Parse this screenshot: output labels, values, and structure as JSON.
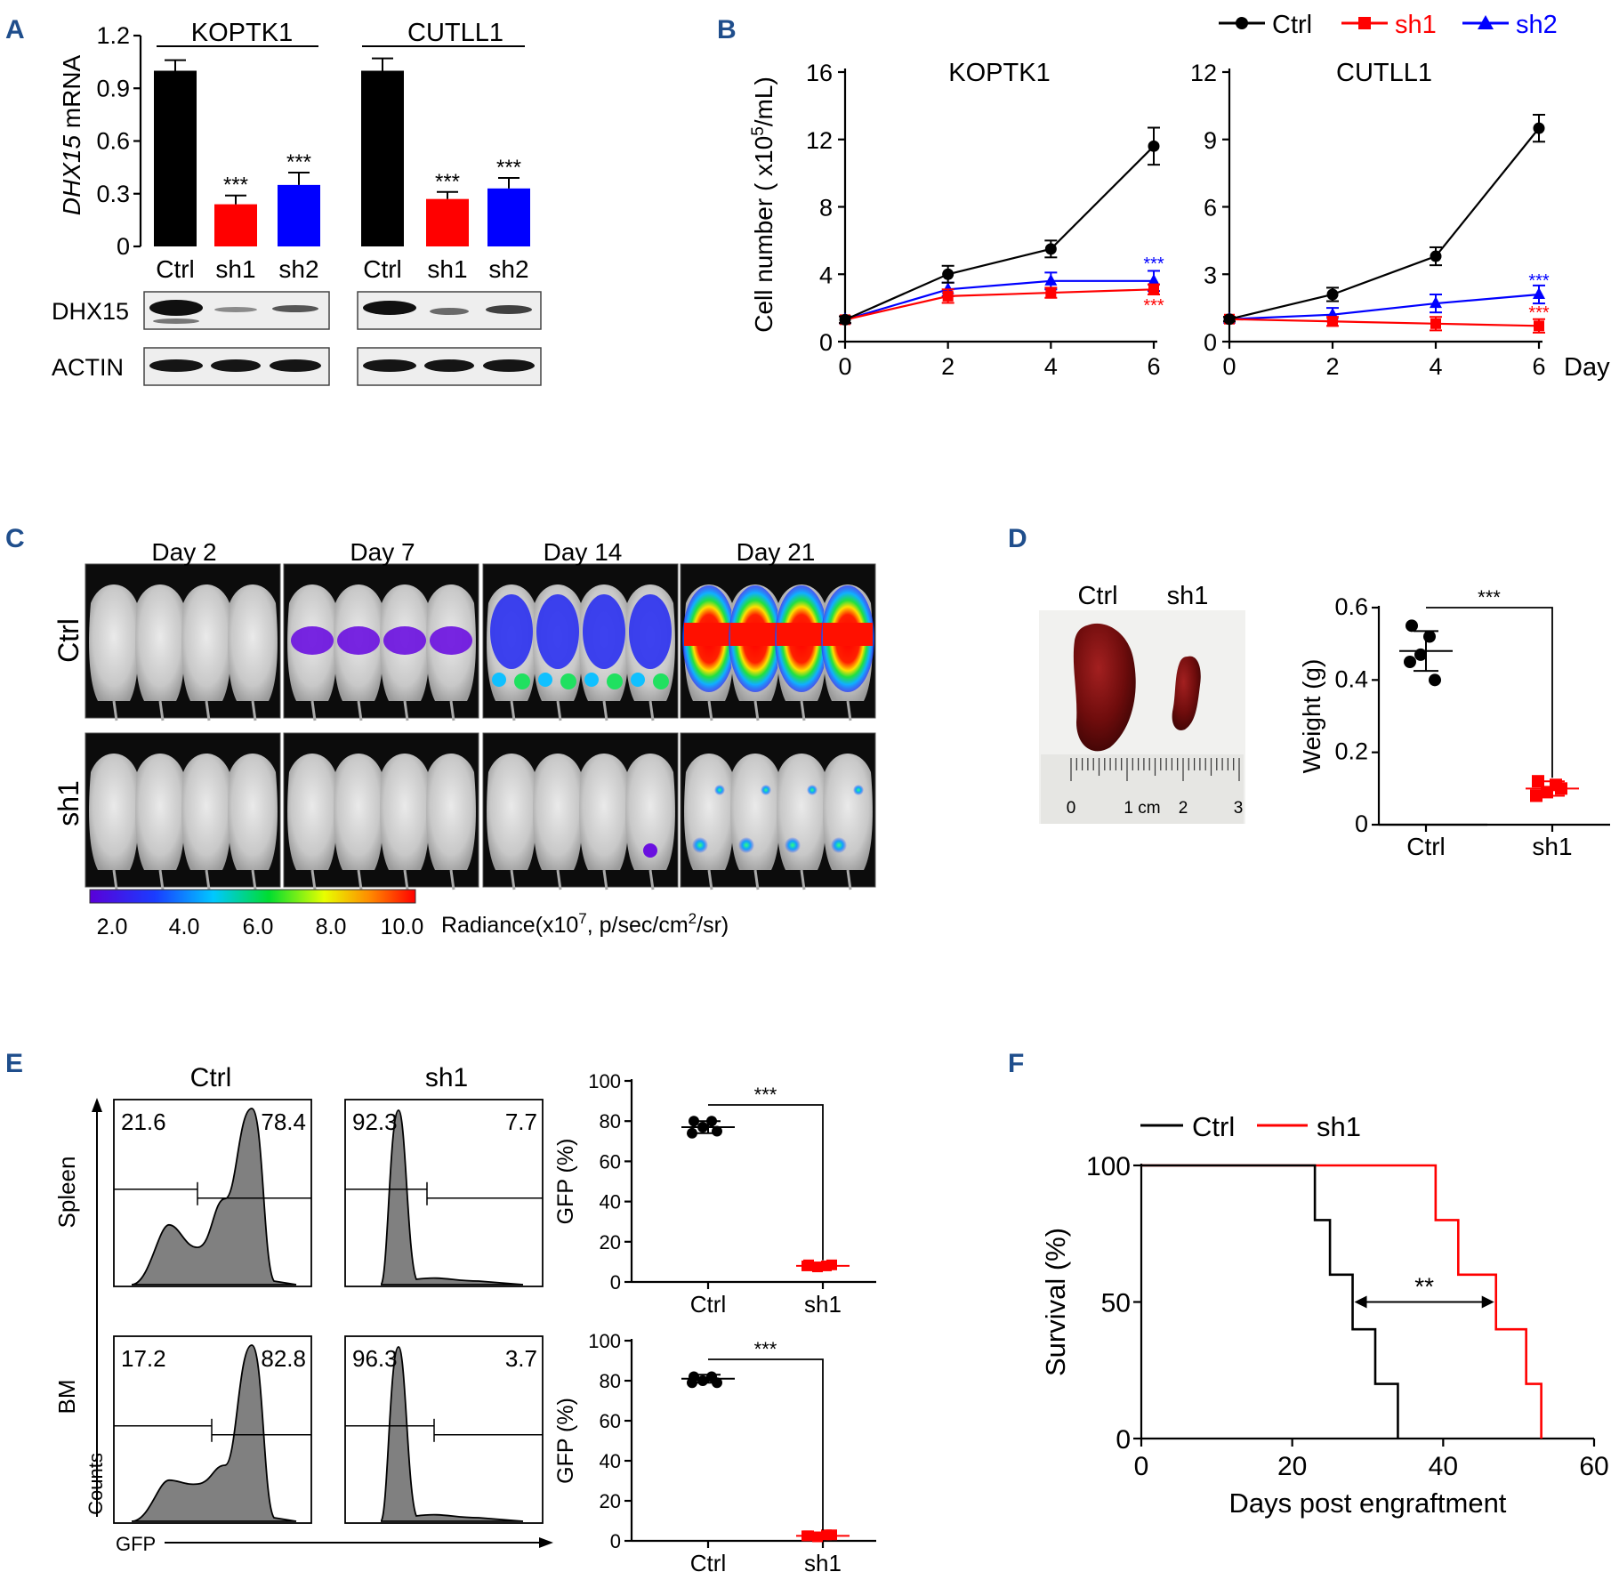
{
  "panels": {
    "a": "A",
    "b": "B",
    "c": "C",
    "d": "D",
    "e": "E",
    "f": "F"
  },
  "panelA": {
    "ylabel_italic": "DHX15",
    "ylabel_rest": " mRNA",
    "groups": [
      "KOPTK1",
      "CUTLL1"
    ],
    "blot_rows": [
      "DHX15",
      "ACTIN"
    ]
  },
  "panelB": {
    "legend": [
      "Ctrl",
      "sh1",
      "sh2"
    ],
    "day_label": "Day",
    "ylabel_pre": "Cell number ( x10",
    "ylabel_sup": "5",
    "ylabel_post": "/mL)"
  },
  "panelC": {
    "days": [
      "Day 2",
      "Day 7",
      "Day 14",
      "Day 21"
    ],
    "rows": [
      "Ctrl",
      "sh1"
    ],
    "colorbar_ticks": [
      "2.0",
      "4.0",
      "6.0",
      "8.0",
      "10.0"
    ],
    "radiance_pre": "Radiance(x10",
    "radiance_sup1": "7",
    "radiance_mid": ", p/sec/cm",
    "radiance_sup2": "2",
    "radiance_post": "/sr)"
  },
  "panelD": {
    "photo_labels": [
      "Ctrl",
      "sh1"
    ],
    "ruler_labels": [
      "0",
      "1 cm",
      "2",
      "3"
    ]
  },
  "panelE": {
    "columns": [
      "Ctrl",
      "sh1"
    ],
    "rows": [
      "Spleen",
      "BM"
    ],
    "gates": [
      {
        "left": "21.6",
        "right": "78.4"
      },
      {
        "left": "92.3",
        "right": "7.7"
      },
      {
        "left": "17.2",
        "right": "82.8"
      },
      {
        "left": "96.3",
        "right": "3.7"
      }
    ],
    "y_axis_label": "Counts",
    "x_axis_label": "GFP"
  },
  "colors": {
    "ctrl": "#000000",
    "sh1": "#ff0000",
    "sh2": "#0000ff",
    "panel_label": "#1f4e8c"
  },
  "chart_data": [
    {
      "id": "A-left",
      "type": "bar",
      "title": "KOPTK1",
      "categories": [
        "Ctrl",
        "sh1",
        "sh2"
      ],
      "values": [
        1.0,
        0.24,
        0.35
      ],
      "errors": [
        0.06,
        0.05,
        0.07
      ],
      "significance": [
        "",
        "***",
        "***"
      ],
      "ylabel": "DHX15 mRNA",
      "ylim": [
        0,
        1.2
      ],
      "yticks": [
        "0",
        "0.3",
        "0.6",
        "0.9",
        "1.2"
      ]
    },
    {
      "id": "A-right",
      "type": "bar",
      "title": "CUTLL1",
      "categories": [
        "Ctrl",
        "sh1",
        "sh2"
      ],
      "values": [
        1.0,
        0.27,
        0.33
      ],
      "errors": [
        0.07,
        0.04,
        0.06
      ],
      "significance": [
        "",
        "***",
        "***"
      ],
      "ylim": [
        0,
        1.2
      ]
    },
    {
      "id": "B-left",
      "type": "line",
      "title": "KOPTK1",
      "x": [
        0,
        2,
        4,
        6
      ],
      "xticks": [
        "0",
        "2",
        "4",
        "6"
      ],
      "yticks": [
        "0",
        "4",
        "8",
        "12",
        "16"
      ],
      "ylim": [
        0,
        16
      ],
      "ylabel": "Cell number ( x10^5/mL)",
      "series": [
        {
          "name": "Ctrl",
          "values": [
            1.3,
            4.0,
            5.5,
            11.6
          ],
          "errors": [
            0.2,
            0.5,
            0.5,
            1.1
          ]
        },
        {
          "name": "sh1",
          "values": [
            1.3,
            2.7,
            2.9,
            3.1
          ],
          "errors": [
            0.2,
            0.4,
            0.3,
            0.3
          ],
          "significance": "***"
        },
        {
          "name": "sh2",
          "values": [
            1.3,
            3.1,
            3.6,
            3.6
          ],
          "errors": [
            0.2,
            0.4,
            0.5,
            0.6
          ],
          "significance": "***"
        }
      ]
    },
    {
      "id": "B-right",
      "type": "line",
      "title": "CUTLL1",
      "x": [
        0,
        2,
        4,
        6
      ],
      "xticks": [
        "0",
        "2",
        "4",
        "6"
      ],
      "yticks": [
        "0",
        "3",
        "6",
        "9",
        "12"
      ],
      "ylim": [
        0,
        12
      ],
      "xlabel": "Day",
      "series": [
        {
          "name": "Ctrl",
          "values": [
            1.0,
            2.1,
            3.8,
            9.5
          ],
          "errors": [
            0.1,
            0.3,
            0.4,
            0.6
          ]
        },
        {
          "name": "sh1",
          "values": [
            1.0,
            0.9,
            0.8,
            0.7
          ],
          "errors": [
            0.1,
            0.2,
            0.3,
            0.3
          ],
          "significance": "***"
        },
        {
          "name": "sh2",
          "values": [
            1.0,
            1.2,
            1.7,
            2.1
          ],
          "errors": [
            0.1,
            0.3,
            0.4,
            0.4
          ],
          "significance": "***"
        }
      ]
    },
    {
      "id": "D",
      "type": "scatter",
      "categories": [
        "Ctrl",
        "sh1"
      ],
      "ylabel": "Weight (g)",
      "ylim": [
        0,
        0.6
      ],
      "yticks": [
        "0",
        "0.2",
        "0.4",
        "0.6"
      ],
      "points": [
        [
          0.55,
          0.52,
          0.47,
          0.45,
          0.4
        ],
        [
          0.12,
          0.11,
          0.09,
          0.08,
          0.1
        ]
      ],
      "means": [
        0.48,
        0.1
      ],
      "sd": [
        0.055,
        0.02
      ],
      "significance": "***"
    },
    {
      "id": "E-spleen",
      "type": "scatter",
      "categories": [
        "Ctrl",
        "sh1"
      ],
      "ylabel": "GFP (%)",
      "ylim": [
        0,
        100
      ],
      "yticks": [
        "0",
        "20",
        "40",
        "60",
        "80",
        "100"
      ],
      "points": [
        [
          80,
          80,
          77,
          74,
          75
        ],
        [
          8.5,
          8,
          7.5,
          8,
          8.5
        ]
      ],
      "means": [
        77,
        8
      ],
      "sd": [
        3,
        1
      ],
      "significance": "***"
    },
    {
      "id": "E-BM",
      "type": "scatter",
      "categories": [
        "Ctrl",
        "sh1"
      ],
      "ylabel": "GFP (%)",
      "ylim": [
        0,
        100
      ],
      "yticks": [
        "0",
        "20",
        "40",
        "60",
        "80",
        "100"
      ],
      "points": [
        [
          82,
          82,
          80,
          79,
          79
        ],
        [
          2.5,
          3,
          2,
          2.5,
          3
        ]
      ],
      "means": [
        81,
        2.5
      ],
      "sd": [
        2,
        1
      ],
      "significance": "***"
    },
    {
      "id": "F",
      "type": "line",
      "subtype": "survival-step",
      "xlabel": "Days post engraftment",
      "ylabel": "Survival (%)",
      "xlim": [
        0,
        60
      ],
      "ylim": [
        0,
        100
      ],
      "xticks": [
        "0",
        "20",
        "40",
        "60"
      ],
      "yticks": [
        "0",
        "50",
        "100"
      ],
      "significance": "**",
      "series": [
        {
          "name": "Ctrl",
          "steps": [
            [
              0,
              100
            ],
            [
              23,
              100
            ],
            [
              23,
              80
            ],
            [
              25,
              80
            ],
            [
              25,
              60
            ],
            [
              28,
              60
            ],
            [
              28,
              40
            ],
            [
              31,
              40
            ],
            [
              31,
              20
            ],
            [
              34,
              20
            ],
            [
              34,
              0
            ]
          ]
        },
        {
          "name": "sh1",
          "steps": [
            [
              0,
              100
            ],
            [
              39,
              100
            ],
            [
              39,
              80
            ],
            [
              42,
              80
            ],
            [
              42,
              60
            ],
            [
              47,
              60
            ],
            [
              47,
              40
            ],
            [
              51,
              40
            ],
            [
              51,
              20
            ],
            [
              53,
              20
            ],
            [
              53,
              0
            ]
          ]
        }
      ]
    }
  ]
}
